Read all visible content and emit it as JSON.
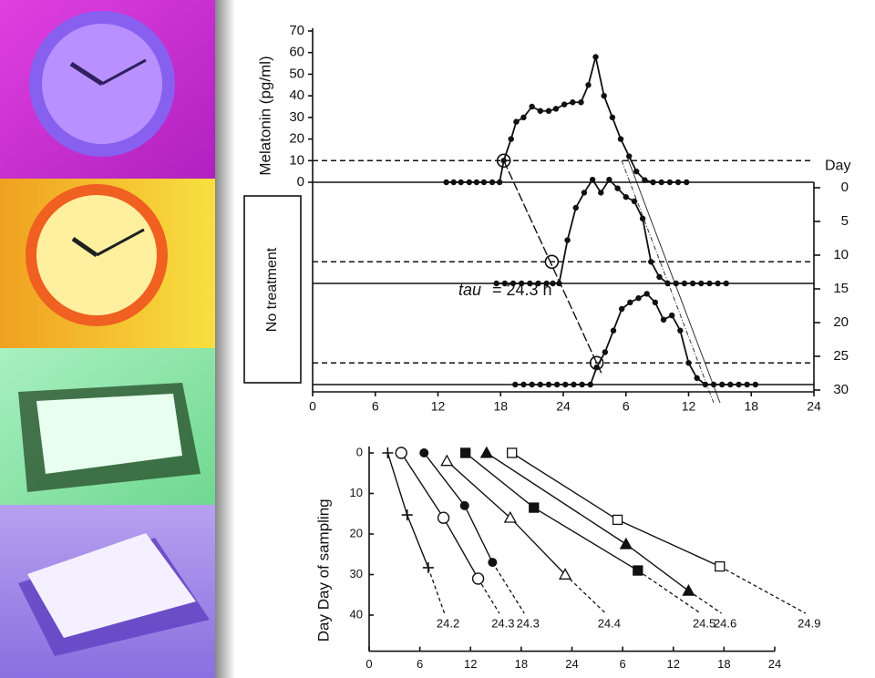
{
  "chart_data": [
    {
      "type": "line",
      "ylabel": "Melatonin (pg/ml)",
      "y2label": "Day",
      "annotation": "No treatment",
      "tau_symbol": "tau",
      "tau_text": "= 24.3 h",
      "xlim": [
        0,
        48
      ],
      "xticks": [
        0,
        6,
        12,
        18,
        24,
        {
          "value": 30,
          "label": "6"
        },
        {
          "value": 36,
          "label": "12"
        },
        {
          "value": 42,
          "label": "18"
        },
        {
          "value": 48,
          "label": "24"
        }
      ],
      "ylim": [
        0,
        70
      ],
      "yticks": [
        0,
        10,
        20,
        30,
        40,
        50,
        60,
        70
      ],
      "y2lim": [
        0,
        30
      ],
      "y2ticks": [
        0,
        5,
        10,
        15,
        20,
        25,
        30
      ],
      "threshold": 10,
      "color": "#111111",
      "series": [
        {
          "day": 0,
          "onset": 18.3,
          "x": [
            12.8,
            13.5,
            14.2,
            15,
            15.7,
            16.4,
            17.2,
            17.9,
            18.3,
            19,
            19.5,
            20.2,
            21,
            21.8,
            22.6,
            23.3,
            24.1,
            24.9,
            25.7,
            26.4,
            27.1,
            27.9,
            28.7,
            29.5,
            30.3,
            31,
            31.8,
            32.6,
            33.4,
            34.2,
            35,
            35.8
          ],
          "values": [
            0,
            0,
            0,
            0,
            0,
            0,
            0,
            0,
            10,
            20,
            28,
            30,
            35,
            33,
            33,
            34,
            36,
            37,
            37,
            45,
            58,
            40,
            30,
            20,
            12,
            5,
            1,
            0,
            0,
            0,
            0,
            0
          ]
        },
        {
          "day": 15,
          "onset": 22.9,
          "x": [
            17.6,
            18.4,
            19.2,
            20,
            20.8,
            21.6,
            22.4,
            23,
            23.6,
            24.4,
            25.2,
            26,
            26.8,
            27.6,
            28.4,
            29.2,
            30,
            30.8,
            31.6,
            32.4,
            33.2,
            34,
            34.8,
            35.6,
            36.4,
            37.2,
            38,
            38.8,
            39.6
          ],
          "values": [
            0,
            0,
            0,
            0,
            0,
            0,
            0,
            0,
            0,
            20,
            35,
            42,
            48,
            42,
            48,
            44,
            40,
            38,
            30,
            10,
            3,
            0,
            0,
            0,
            0,
            0,
            0,
            0,
            0
          ]
        },
        {
          "day": 30,
          "onset": 27.2,
          "x": [
            19.4,
            20.2,
            21,
            21.8,
            22.6,
            23.4,
            24.2,
            25,
            25.8,
            26.6,
            27.2,
            28,
            28.8,
            29.6,
            30.4,
            31.2,
            32,
            32.8,
            33.6,
            34.4,
            35.2,
            36,
            36.8,
            37.6,
            38.4,
            39.2,
            40,
            40.8,
            41.6,
            42.4
          ],
          "values": [
            0,
            0,
            0,
            0,
            0,
            0,
            0,
            0,
            0,
            0,
            8,
            15,
            25,
            35,
            38,
            40,
            42,
            38,
            30,
            32,
            25,
            10,
            3,
            0,
            0,
            0,
            0,
            0,
            0,
            0
          ]
        }
      ]
    },
    {
      "type": "scatter",
      "ylabel": "Day Day of sampling",
      "xlim": [
        0,
        48
      ],
      "xticks": [
        0,
        6,
        12,
        18,
        24,
        {
          "value": 30,
          "label": "6"
        },
        {
          "value": 36,
          "label": "12"
        },
        {
          "value": 42,
          "label": "18"
        },
        {
          "value": 48,
          "label": "24"
        }
      ],
      "ylim": [
        0,
        48
      ],
      "yticks": [
        0,
        10,
        20,
        30,
        40
      ],
      "color": "#111111",
      "series": [
        {
          "name": "24.2",
          "marker": "plus",
          "x": [
            2.2,
            4.5,
            7.0
          ],
          "values": [
            0,
            15.3,
            28.3
          ]
        },
        {
          "name": "24.3",
          "marker": "circle",
          "x": [
            3.8,
            8.8,
            12.9
          ],
          "values": [
            0,
            16,
            31
          ]
        },
        {
          "name": "24.3",
          "marker": "hexagon",
          "x": [
            6.5,
            11.3,
            14.6
          ],
          "values": [
            0,
            13,
            27
          ]
        },
        {
          "name": "24.4",
          "marker": "triangle",
          "x": [
            9.2,
            16.7,
            23.2
          ],
          "values": [
            2,
            16,
            30
          ]
        },
        {
          "name": "24.5",
          "marker": "square-filled",
          "x": [
            11.4,
            19.5,
            31.8
          ],
          "values": [
            0,
            13.5,
            29
          ]
        },
        {
          "name": "24.6",
          "marker": "triangle-filled",
          "x": [
            13.9,
            30.4,
            37.8
          ],
          "values": [
            0,
            22.5,
            34
          ]
        },
        {
          "name": "24.9",
          "marker": "square",
          "x": [
            16.9,
            29.4,
            41.5
          ],
          "values": [
            0,
            16.5,
            28
          ]
        }
      ]
    }
  ]
}
